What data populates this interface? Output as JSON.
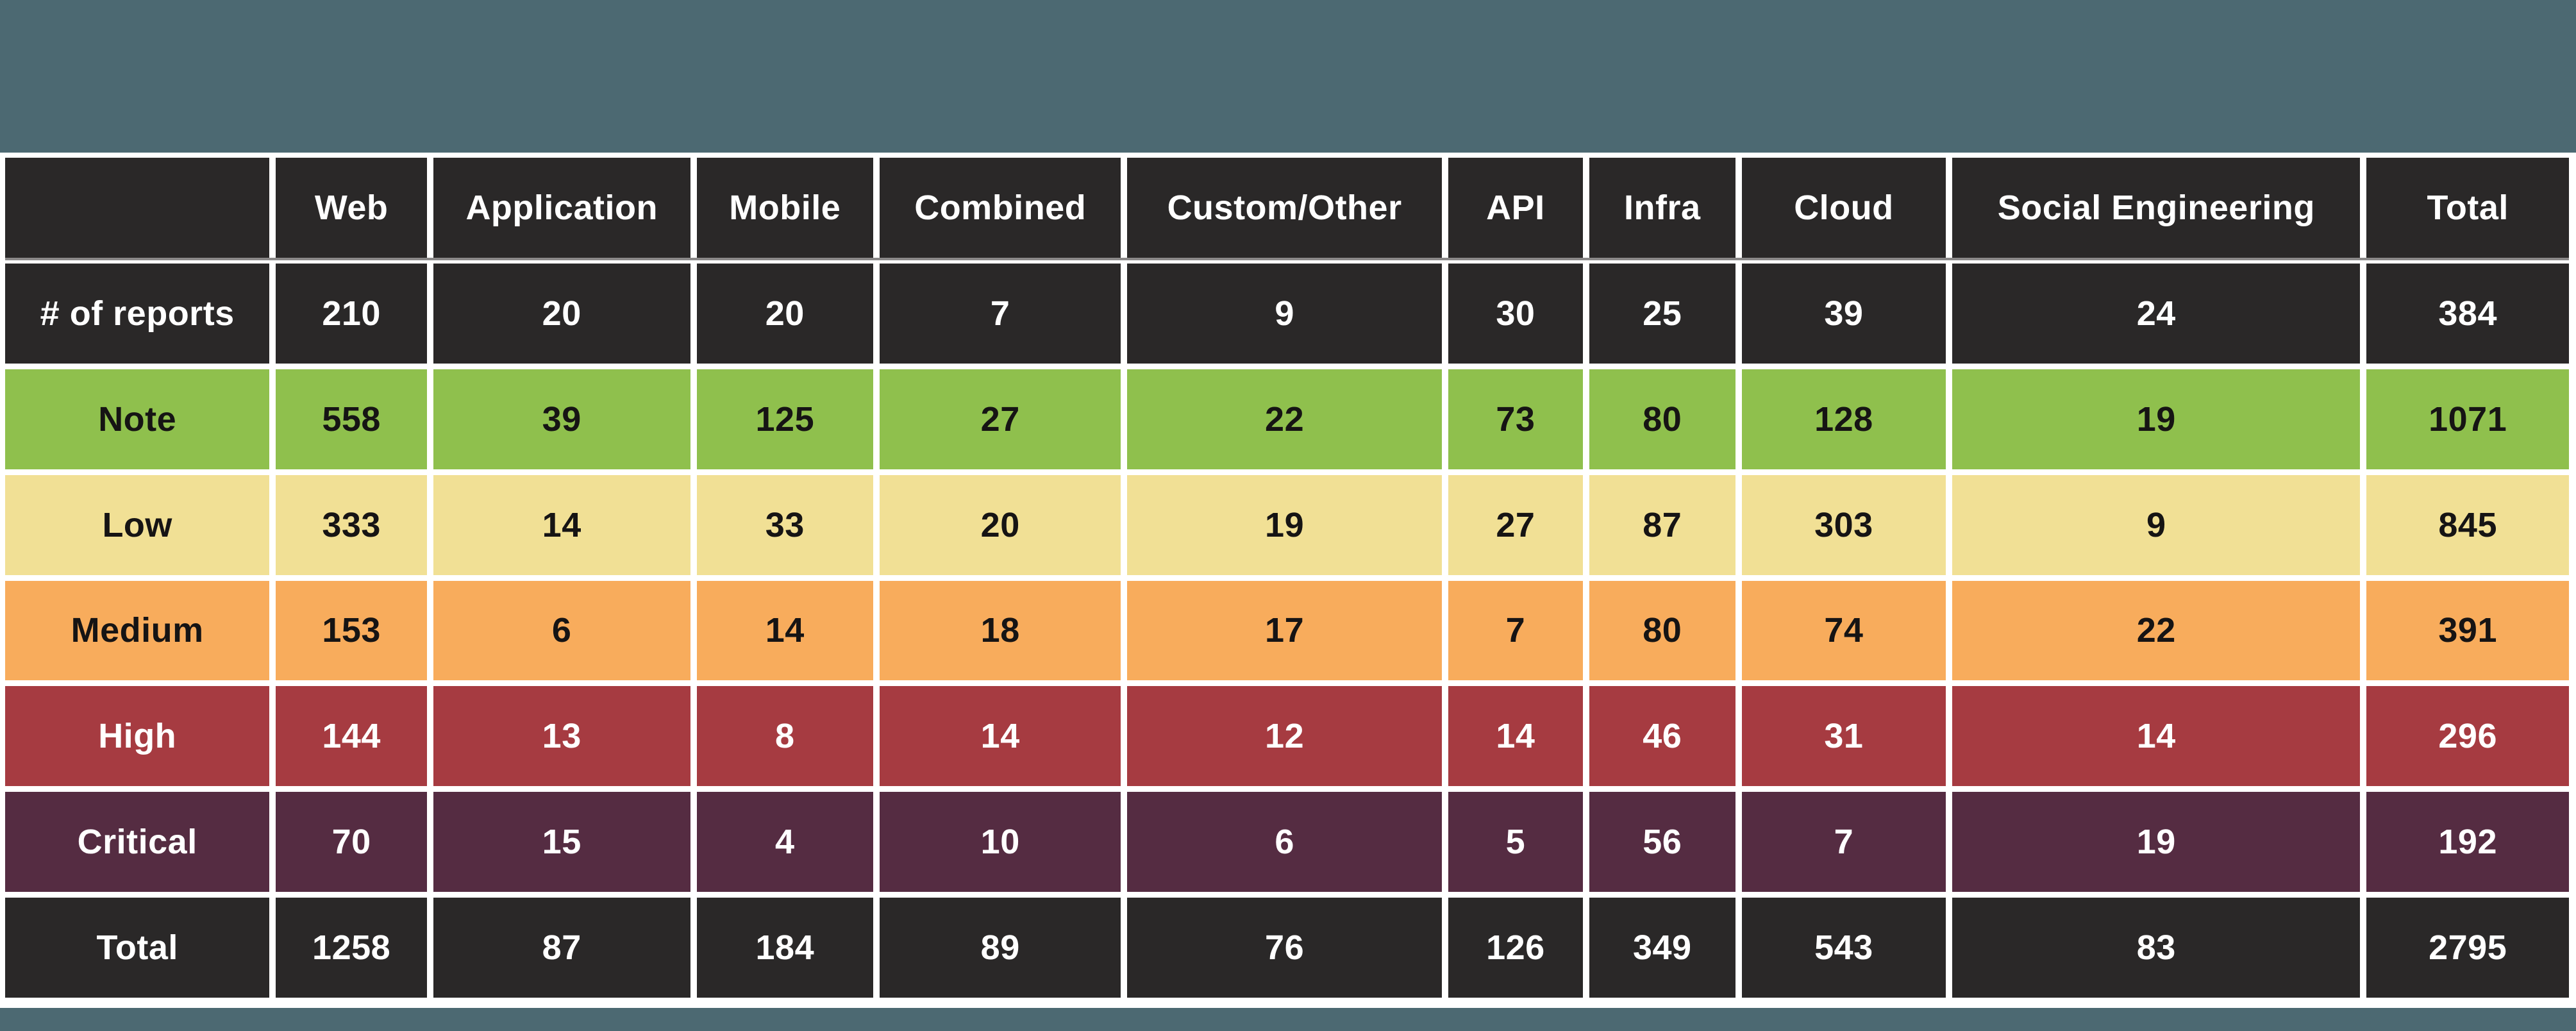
{
  "slide": {
    "top_banner_color": "#4C6972",
    "bottom_banner_color": "#4C6972",
    "background_color": "#FFFFFF"
  },
  "chart_data": {
    "type": "table",
    "columns": [
      "",
      "Web",
      "Application",
      "Mobile",
      "Combined",
      "Custom/Other",
      "API",
      "Infra",
      "Cloud",
      "Social Engineering",
      "Total"
    ],
    "rows": [
      {
        "label": "# of reports",
        "style": "dark",
        "values": [
          210,
          20,
          20,
          7,
          9,
          30,
          25,
          39,
          24,
          384
        ]
      },
      {
        "label": "Note",
        "style": "green",
        "values": [
          558,
          39,
          125,
          27,
          22,
          73,
          80,
          128,
          19,
          1071
        ]
      },
      {
        "label": "Low",
        "style": "yellow",
        "values": [
          333,
          14,
          33,
          20,
          19,
          27,
          87,
          303,
          9,
          845
        ]
      },
      {
        "label": "Medium",
        "style": "orange",
        "values": [
          153,
          6,
          14,
          18,
          17,
          7,
          80,
          74,
          22,
          391
        ]
      },
      {
        "label": "High",
        "style": "red",
        "values": [
          144,
          13,
          8,
          14,
          12,
          14,
          46,
          31,
          14,
          296
        ]
      },
      {
        "label": "Critical",
        "style": "plum",
        "values": [
          70,
          15,
          4,
          10,
          6,
          5,
          56,
          7,
          19,
          192
        ]
      },
      {
        "label": "Total",
        "style": "dark",
        "values": [
          1258,
          87,
          184,
          89,
          76,
          126,
          349,
          543,
          83,
          2795
        ]
      }
    ],
    "header_style": "dark",
    "style_colors": {
      "dark": {
        "bg": "#2A2828",
        "text": "#FFFFFF"
      },
      "green": {
        "bg": "#8FC04D",
        "text": "#161414"
      },
      "yellow": {
        "bg": "#F1E095",
        "text": "#161414"
      },
      "orange": {
        "bg": "#F8AC5C",
        "text": "#161414"
      },
      "red": {
        "bg": "#A63B41",
        "text": "#FFFFFF"
      },
      "plum": {
        "bg": "#552C42",
        "text": "#FFFFFF"
      }
    },
    "header_underline_color": "#8B8989",
    "grid_line_color": "#FFFFFF",
    "legend_position": "none",
    "grid": false
  }
}
